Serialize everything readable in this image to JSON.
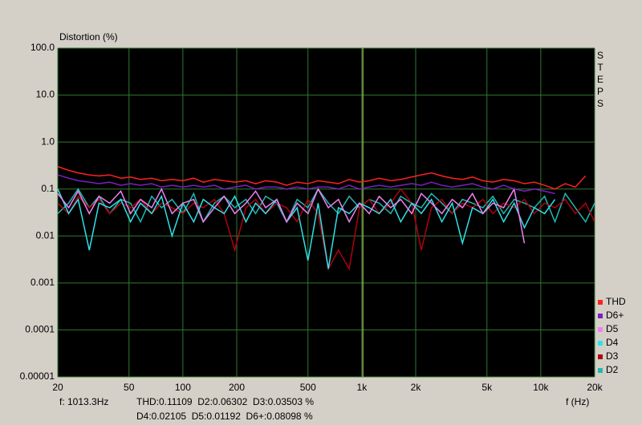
{
  "chart_data": {
    "type": "line",
    "y_label": "Distortion (%)",
    "x_label": "f (Hz)",
    "side_label": "STEPS",
    "log_x": true,
    "log_y": true,
    "grid": true,
    "legend": "bottom-right",
    "xlim": [
      20,
      20000
    ],
    "ylim": [
      1e-05,
      100
    ],
    "xticks": [
      20,
      50,
      100,
      200,
      500,
      {
        "value": 1000,
        "label": "1k"
      },
      {
        "value": 2000,
        "label": "2k"
      },
      {
        "value": 5000,
        "label": "5k"
      },
      {
        "value": 10000,
        "label": "10k"
      },
      {
        "value": 20000,
        "label": "20k"
      }
    ],
    "yticks": [
      {
        "value": 100,
        "label": "100.0"
      },
      {
        "value": 10,
        "label": "10.0"
      },
      {
        "value": 1,
        "label": "1.0"
      },
      0.1,
      0.01,
      0.001,
      0.0001,
      1e-05
    ],
    "cursor_frequency": 1013.3,
    "readout": [
      "f: 1013.3Hz",
      "THD:0.11109  D2:0.06302  D3:0.03503 %",
      "D4:0.02105  D5:0.01192  D6+:0.08098 %"
    ],
    "x": [
      20,
      23,
      26,
      30,
      34,
      39,
      45,
      51,
      58,
      67,
      76,
      87,
      100,
      115,
      130,
      150,
      170,
      195,
      225,
      255,
      290,
      335,
      380,
      435,
      500,
      570,
      650,
      740,
      850,
      970,
      1100,
      1250,
      1450,
      1650,
      1900,
      2150,
      2450,
      2800,
      3200,
      3650,
      4150,
      4750,
      5400,
      6200,
      7100,
      8100,
      9200,
      10500,
      12000,
      13700,
      15600,
      17800,
      20000
    ],
    "series": [
      {
        "name": "THD",
        "color": "#ff2020",
        "values": [
          0.3,
          0.25,
          0.22,
          0.2,
          0.19,
          0.2,
          0.17,
          0.18,
          0.16,
          0.17,
          0.15,
          0.16,
          0.15,
          0.17,
          0.14,
          0.16,
          0.15,
          0.14,
          0.15,
          0.13,
          0.15,
          0.14,
          0.12,
          0.14,
          0.13,
          0.15,
          0.14,
          0.13,
          0.16,
          0.14,
          0.15,
          0.17,
          0.15,
          0.16,
          0.18,
          0.2,
          0.22,
          0.19,
          0.17,
          0.16,
          0.18,
          0.15,
          0.14,
          0.16,
          0.15,
          0.13,
          0.14,
          0.12,
          0.1,
          0.13,
          0.11,
          0.19,
          null
        ]
      },
      {
        "name": "D6+",
        "color": "#7a1fc0",
        "values": [
          0.2,
          0.17,
          0.15,
          0.14,
          0.13,
          0.14,
          0.12,
          0.13,
          0.12,
          0.13,
          0.11,
          0.12,
          0.11,
          0.12,
          0.11,
          0.12,
          0.1,
          0.11,
          0.12,
          0.1,
          0.11,
          0.11,
          0.1,
          0.11,
          0.1,
          0.11,
          0.11,
          0.1,
          0.12,
          0.1,
          0.11,
          0.12,
          0.11,
          0.12,
          0.13,
          0.12,
          0.14,
          0.12,
          0.11,
          0.12,
          0.13,
          0.11,
          0.1,
          0.12,
          0.1,
          0.09,
          0.1,
          0.09,
          0.08,
          null,
          null,
          null,
          null
        ]
      },
      {
        "name": "D5",
        "color": "#f080f0",
        "values": [
          0.08,
          0.04,
          0.09,
          0.03,
          0.07,
          0.05,
          0.09,
          0.03,
          0.06,
          0.04,
          0.1,
          0.03,
          0.05,
          0.06,
          0.02,
          0.04,
          0.07,
          0.03,
          0.05,
          0.09,
          0.04,
          0.06,
          0.02,
          0.05,
          0.03,
          0.1,
          0.04,
          0.06,
          0.02,
          0.05,
          0.03,
          0.07,
          0.04,
          0.06,
          0.03,
          0.08,
          0.05,
          0.03,
          0.06,
          0.04,
          0.08,
          0.03,
          0.05,
          0.04,
          0.1,
          0.007,
          null,
          null,
          null,
          null,
          null,
          null,
          null
        ]
      },
      {
        "name": "D4",
        "color": "#30e0e8",
        "values": [
          0.1,
          0.03,
          0.06,
          0.005,
          0.05,
          0.04,
          0.06,
          0.02,
          0.05,
          0.03,
          0.07,
          0.01,
          0.05,
          0.02,
          0.06,
          0.04,
          0.03,
          0.07,
          0.02,
          0.05,
          0.03,
          0.06,
          0.02,
          0.04,
          0.003,
          0.05,
          0.002,
          0.04,
          0.03,
          0.05,
          0.04,
          0.03,
          0.06,
          0.02,
          0.05,
          0.03,
          0.06,
          0.02,
          0.05,
          0.007,
          0.04,
          0.03,
          0.06,
          0.02,
          0.05,
          0.015,
          0.04,
          0.03,
          0.06,
          null,
          null,
          null,
          null
        ]
      },
      {
        "name": "D3",
        "color": "#b00010",
        "values": [
          0.05,
          0.03,
          0.07,
          0.04,
          0.06,
          0.03,
          0.05,
          0.04,
          0.06,
          0.03,
          0.05,
          0.04,
          0.03,
          0.05,
          0.04,
          0.06,
          0.03,
          0.005,
          0.04,
          0.06,
          0.03,
          0.05,
          0.04,
          0.02,
          0.06,
          0.03,
          0.002,
          0.005,
          0.002,
          0.04,
          0.06,
          0.03,
          0.05,
          0.1,
          0.05,
          0.005,
          0.04,
          0.06,
          0.03,
          0.05,
          0.04,
          0.06,
          0.03,
          0.05,
          0.04,
          0.06,
          0.03,
          0.05,
          0.04,
          0.06,
          0.03,
          0.05,
          0.02
        ]
      },
      {
        "name": "D2",
        "color": "#20b8b0",
        "values": [
          0.03,
          0.05,
          0.1,
          0.04,
          0.07,
          0.03,
          0.06,
          0.05,
          0.02,
          0.07,
          0.04,
          0.06,
          0.03,
          0.08,
          0.02,
          0.05,
          0.07,
          0.04,
          0.06,
          0.03,
          0.07,
          0.05,
          0.02,
          0.06,
          0.04,
          0.1,
          0.05,
          0.03,
          0.07,
          0.04,
          0.06,
          0.05,
          0.03,
          0.07,
          0.05,
          0.04,
          0.08,
          0.05,
          0.03,
          0.06,
          0.05,
          0.04,
          0.07,
          0.03,
          0.06,
          0.05,
          0.04,
          0.07,
          0.02,
          0.08,
          0.04,
          0.02,
          0.05
        ]
      }
    ]
  }
}
